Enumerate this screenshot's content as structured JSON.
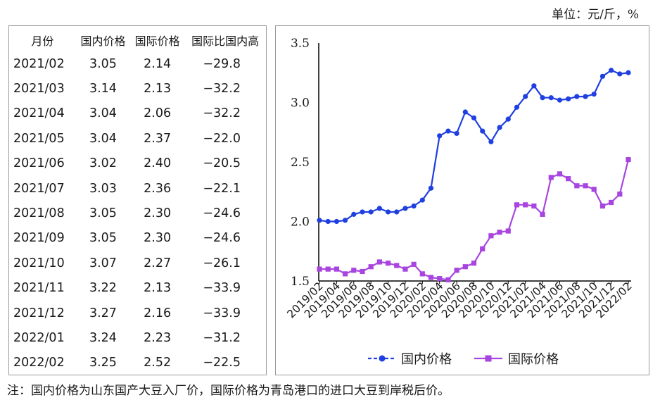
{
  "unit_label": "单位：元/斤，%",
  "table": {
    "headers": [
      "月份",
      "国内价格",
      "国际价格",
      "国际比国内高"
    ],
    "rows": [
      [
        "2021/02",
        "3.05",
        "2.14",
        "−29.8"
      ],
      [
        "2021/03",
        "3.14",
        "2.13",
        "−32.2"
      ],
      [
        "2021/04",
        "3.04",
        "2.06",
        "−32.2"
      ],
      [
        "2021/05",
        "3.04",
        "2.37",
        "−22.0"
      ],
      [
        "2021/06",
        "3.02",
        "2.40",
        "−20.5"
      ],
      [
        "2021/07",
        "3.03",
        "2.36",
        "−22.1"
      ],
      [
        "2021/08",
        "3.05",
        "2.30",
        "−24.6"
      ],
      [
        "2021/09",
        "3.05",
        "2.30",
        "−24.6"
      ],
      [
        "2021/10",
        "3.07",
        "2.27",
        "−26.1"
      ],
      [
        "2021/11",
        "3.22",
        "2.13",
        "−33.9"
      ],
      [
        "2021/12",
        "3.27",
        "2.16",
        "−33.9"
      ],
      [
        "2022/01",
        "3.24",
        "2.23",
        "−31.2"
      ],
      [
        "2022/02",
        "3.25",
        "2.52",
        "−22.5"
      ]
    ]
  },
  "chart_data": {
    "type": "line",
    "x": [
      "2019/02",
      "2019/03",
      "2019/04",
      "2019/05",
      "2019/06",
      "2019/07",
      "2019/08",
      "2019/09",
      "2019/10",
      "2019/11",
      "2019/12",
      "2020/01",
      "2020/02",
      "2020/03",
      "2020/04",
      "2020/05",
      "2020/06",
      "2020/07",
      "2020/08",
      "2020/09",
      "2020/10",
      "2020/11",
      "2020/12",
      "2021/01",
      "2021/02",
      "2021/03",
      "2021/04",
      "2021/05",
      "2021/06",
      "2021/07",
      "2021/08",
      "2021/09",
      "2021/10",
      "2021/11",
      "2021/12",
      "2022/01",
      "2022/02"
    ],
    "x_tick_labels": [
      "2019/02",
      "2019/04",
      "2019/06",
      "2019/08",
      "2019/10",
      "2019/12",
      "2020/02",
      "2020/04",
      "2020/06",
      "2020/08",
      "2020/10",
      "2020/12",
      "2021/02",
      "2021/04",
      "2021/06",
      "2021/08",
      "2021/10",
      "2021/12",
      "2022/02"
    ],
    "series": [
      {
        "name": "国内价格",
        "color": "#1f3fe0",
        "marker": "circle",
        "values": [
          2.01,
          2.0,
          2.0,
          2.01,
          2.06,
          2.08,
          2.08,
          2.11,
          2.08,
          2.08,
          2.11,
          2.13,
          2.18,
          2.28,
          2.72,
          2.76,
          2.74,
          2.92,
          2.87,
          2.76,
          2.67,
          2.79,
          2.86,
          2.96,
          3.05,
          3.14,
          3.04,
          3.04,
          3.02,
          3.03,
          3.05,
          3.05,
          3.07,
          3.22,
          3.27,
          3.24,
          3.25
        ]
      },
      {
        "name": "国际价格",
        "color": "#a845e0",
        "marker": "square",
        "values": [
          1.6,
          1.6,
          1.6,
          1.56,
          1.59,
          1.58,
          1.62,
          1.66,
          1.65,
          1.63,
          1.6,
          1.64,
          1.56,
          1.53,
          1.52,
          1.51,
          1.59,
          1.62,
          1.65,
          1.77,
          1.88,
          1.91,
          1.92,
          2.14,
          2.14,
          2.13,
          2.06,
          2.37,
          2.4,
          2.36,
          2.3,
          2.3,
          2.27,
          2.13,
          2.16,
          2.23,
          2.52
        ]
      }
    ],
    "y_ticks": [
      "1.5",
      "2.0",
      "2.5",
      "3.0",
      "3.5"
    ],
    "ylim": [
      1.5,
      3.5
    ],
    "legend_position": "bottom"
  },
  "footnote": "注：国内价格为山东国产大豆入厂价，国际价格为青岛港口的进口大豆到岸税后价。"
}
